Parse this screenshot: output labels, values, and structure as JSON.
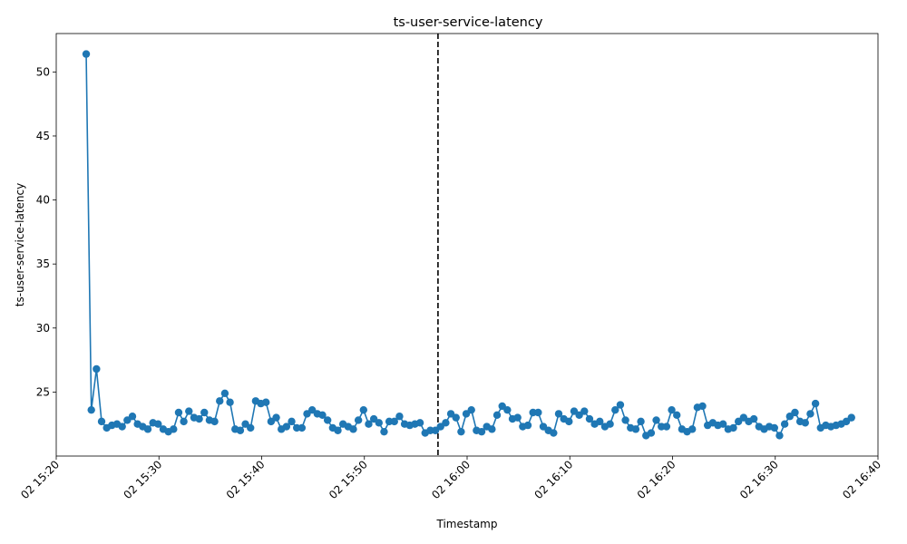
{
  "chart_data": {
    "type": "line",
    "title": "ts-user-service-latency",
    "xlabel": "Timestamp",
    "ylabel": "ts-user-service-latency",
    "x_start": "15:22:55",
    "x_step_seconds": 30,
    "xlim": [
      "15:20:00",
      "16:40:00"
    ],
    "ylim": [
      20,
      53
    ],
    "grid": false,
    "line_color": "#1f77b4",
    "marker": "circle",
    "x_ticks": [
      "02 15:20",
      "02 15:30",
      "02 15:40",
      "02 15:50",
      "02 16:00",
      "02 16:10",
      "02 16:20",
      "02 16:30",
      "02 16:40"
    ],
    "y_ticks": [
      25,
      30,
      35,
      40,
      45,
      50
    ],
    "vline": {
      "x": "15:57:10",
      "style": "dashed",
      "color": "#000000"
    },
    "series": [
      {
        "values": [
          51.4,
          23.6,
          26.8,
          22.7,
          22.2,
          22.4,
          22.5,
          22.3,
          22.8,
          23.1,
          22.5,
          22.3,
          22.1,
          22.6,
          22.5,
          22.1,
          21.9,
          22.1,
          23.4,
          22.7,
          23.5,
          23.0,
          22.9,
          23.4,
          22.8,
          22.7,
          24.3,
          24.9,
          24.2,
          22.1,
          22.0,
          22.5,
          22.2,
          24.3,
          24.1,
          24.2,
          22.7,
          23.0,
          22.1,
          22.3,
          22.7,
          22.2,
          22.2,
          23.3,
          23.6,
          23.3,
          23.2,
          22.8,
          22.2,
          22.0,
          22.5,
          22.3,
          22.1,
          22.8,
          23.6,
          22.5,
          22.9,
          22.6,
          21.9,
          22.7,
          22.7,
          23.1,
          22.5,
          22.4,
          22.5,
          22.6,
          21.8,
          22.0,
          22.0,
          22.3,
          22.6,
          23.3,
          23.0,
          21.9,
          23.3,
          23.6,
          22.0,
          21.9,
          22.3,
          22.1,
          23.2,
          23.9,
          23.6,
          22.9,
          23.0,
          22.3,
          22.4,
          23.4,
          23.4,
          22.3,
          22.0,
          21.8,
          23.3,
          22.9,
          22.7,
          23.5,
          23.2,
          23.5,
          22.9,
          22.5,
          22.7,
          22.3,
          22.5,
          23.6,
          24.0,
          22.8,
          22.2,
          22.1,
          22.7,
          21.6,
          21.8,
          22.8,
          22.3,
          22.3,
          23.6,
          23.2,
          22.1,
          21.9,
          22.1,
          23.8,
          23.9,
          22.4,
          22.6,
          22.4,
          22.5,
          22.1,
          22.2,
          22.7,
          23.0,
          22.7,
          22.9,
          22.3,
          22.1,
          22.3,
          22.2,
          21.6,
          22.5,
          23.1,
          23.4,
          22.7,
          22.6,
          23.3,
          24.1,
          22.2,
          22.4,
          22.3,
          22.4,
          22.5,
          22.7,
          23.0
        ]
      }
    ]
  }
}
